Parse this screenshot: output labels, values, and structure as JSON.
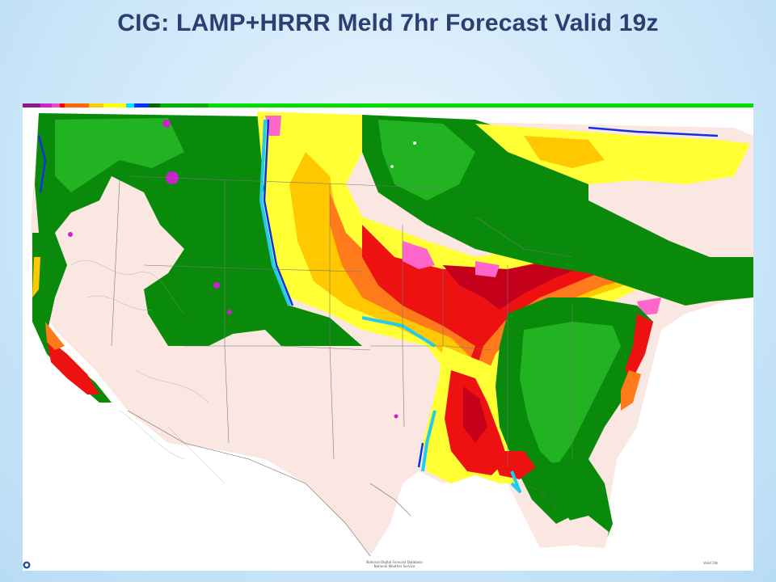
{
  "slide": {
    "title": "CIG: LAMP+HRRR Meld 7hr Forecast Valid 19z"
  },
  "map": {
    "name": "ceiling-forecast-map",
    "legend_colors": [
      "#8b1a8b",
      "#d020d0",
      "#e64bc8",
      "#ff0000",
      "#ff6600",
      "#ffcc00",
      "#ffff00",
      "#00e5ff",
      "#0033ff",
      "#006400",
      "#00b000",
      "#00e000"
    ],
    "footer_center_lines": [
      "National Digital Forecast Database",
      "National Weather Service"
    ],
    "footer_right": "Valid 19z",
    "colors": {
      "bare": "#fbe7e1",
      "dark_green": "#0a8a0a",
      "green": "#22b322",
      "light_green": "#7ed97e",
      "yellow": "#ffff33",
      "gold": "#ffc800",
      "orange": "#ff7a1a",
      "red": "#ee1111",
      "dark_red": "#c4001a",
      "pink": "#ff66cc",
      "magenta": "#cc22cc",
      "cyan": "#22ccee",
      "blue": "#1133dd"
    }
  }
}
